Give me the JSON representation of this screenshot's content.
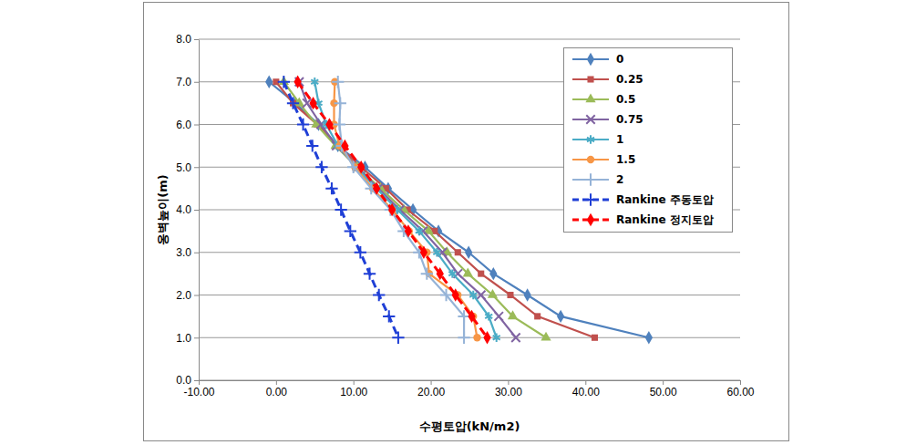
{
  "chart_data": {
    "type": "line",
    "x_label": "수평토압(kN/m2)",
    "y_label": "옹벽높이(m)",
    "xlim": [
      -10,
      60
    ],
    "xticks": [
      {
        "value": -10,
        "label": "-10.00"
      },
      {
        "value": 0,
        "label": "0.00"
      },
      {
        "value": 10,
        "label": "10.00"
      },
      {
        "value": 20,
        "label": "20.00"
      },
      {
        "value": 30,
        "label": "30.00"
      },
      {
        "value": 40,
        "label": "40.00"
      },
      {
        "value": 50,
        "label": "50.00"
      },
      {
        "value": 60,
        "label": "60.00"
      }
    ],
    "ylim": [
      0,
      8
    ],
    "yticks": [
      {
        "value": 0,
        "label": "0.0"
      },
      {
        "value": 1,
        "label": "1.0"
      },
      {
        "value": 2,
        "label": "2.0"
      },
      {
        "value": 3,
        "label": "3.0"
      },
      {
        "value": 4,
        "label": "4.0"
      },
      {
        "value": 5,
        "label": "5.0"
      },
      {
        "value": 6,
        "label": "6.0"
      },
      {
        "value": 7,
        "label": "7.0"
      },
      {
        "value": 8,
        "label": "8.0"
      }
    ],
    "grid": true,
    "legend": "upper right",
    "series": [
      {
        "name": "0",
        "color": "#4f81bd",
        "marker": "diamond",
        "line_style": "solid",
        "x": [
          -0.9,
          2.5,
          5.5,
          8.0,
          11.5,
          14.5,
          17.7,
          21.0,
          24.9,
          28.1,
          32.5,
          36.8,
          48.2
        ],
        "values": [
          7.0,
          6.5,
          6.0,
          5.5,
          5.0,
          4.5,
          4.0,
          3.5,
          3.0,
          2.5,
          2.0,
          1.5,
          1.0
        ]
      },
      {
        "name": "0.25",
        "color": "#c0504d",
        "marker": "square",
        "line_style": "solid",
        "x": [
          0.0,
          2.2,
          5.3,
          8.0,
          11.0,
          14.2,
          17.0,
          20.5,
          23.5,
          26.5,
          30.3,
          33.8,
          41.2
        ],
        "values": [
          7.0,
          6.5,
          6.0,
          5.5,
          5.0,
          4.5,
          4.0,
          3.5,
          3.0,
          2.5,
          2.0,
          1.5,
          1.0
        ]
      },
      {
        "name": "0.5",
        "color": "#9bbb59",
        "marker": "triangle",
        "line_style": "solid",
        "x": [
          1.0,
          3.0,
          5.2,
          7.7,
          10.5,
          13.5,
          16.5,
          19.7,
          22.1,
          24.8,
          28.0,
          30.6,
          34.9
        ],
        "values": [
          7.0,
          6.5,
          6.0,
          5.5,
          5.0,
          4.5,
          4.0,
          3.5,
          3.0,
          2.5,
          2.0,
          1.5,
          1.0
        ]
      },
      {
        "name": "0.75",
        "color": "#8064a2",
        "marker": "x",
        "line_style": "solid",
        "x": [
          3.0,
          4.0,
          5.8,
          7.8,
          10.5,
          13.2,
          16.0,
          19.0,
          21.5,
          23.5,
          26.5,
          28.8,
          31.0
        ],
        "values": [
          7.0,
          6.5,
          6.0,
          5.5,
          5.0,
          4.5,
          4.0,
          3.5,
          3.0,
          2.5,
          2.0,
          1.5,
          1.0
        ]
      },
      {
        "name": "1",
        "color": "#4bacc6",
        "marker": "star",
        "line_style": "solid",
        "x": [
          5.0,
          5.5,
          6.5,
          8.0,
          10.3,
          13.0,
          15.7,
          18.5,
          20.8,
          22.8,
          25.5,
          27.5,
          28.5
        ],
        "values": [
          7.0,
          6.5,
          6.0,
          5.5,
          5.0,
          4.5,
          4.0,
          3.5,
          3.0,
          2.5,
          2.0,
          1.5,
          1.0
        ]
      },
      {
        "name": "1.5",
        "color": "#f79646",
        "marker": "circle",
        "line_style": "solid",
        "x": [
          7.6,
          7.5,
          7.5,
          8.2,
          10.2,
          12.5,
          15.0,
          17.2,
          19.5,
          19.8,
          23.5,
          25.5,
          26.0
        ],
        "values": [
          7.0,
          6.5,
          6.0,
          5.5,
          5.0,
          4.5,
          4.0,
          3.5,
          3.0,
          2.5,
          2.0,
          1.5,
          1.0
        ]
      },
      {
        "name": "2",
        "color": "#95b3d7",
        "marker": "plus",
        "line_style": "solid",
        "x": [
          8.0,
          8.3,
          8.2,
          8.5,
          10.0,
          12.3,
          14.8,
          16.5,
          18.5,
          19.5,
          22.0,
          24.3,
          24.3
        ],
        "values": [
          7.0,
          6.5,
          6.0,
          5.5,
          5.0,
          4.5,
          4.0,
          3.5,
          3.0,
          2.5,
          2.0,
          1.5,
          1.0
        ]
      },
      {
        "name": "Rankine 주동토압",
        "color": "#1f3fd6",
        "marker": "plus",
        "line_style": "dashed",
        "x": [
          1.0,
          2.2,
          3.5,
          4.7,
          5.9,
          7.2,
          8.4,
          9.6,
          10.9,
          12.1,
          13.3,
          14.6,
          15.8
        ],
        "values": [
          7.0,
          6.5,
          6.0,
          5.5,
          5.0,
          4.5,
          4.0,
          3.5,
          3.0,
          2.5,
          2.0,
          1.5,
          1.0
        ]
      },
      {
        "name": "Rankine 정지토압",
        "color": "#ff0000",
        "marker": "diamond",
        "line_style": "dashed",
        "x": [
          2.8,
          4.8,
          6.9,
          8.9,
          11.0,
          13.0,
          15.0,
          17.1,
          19.1,
          21.2,
          23.2,
          25.3,
          27.3
        ],
        "values": [
          7.0,
          6.5,
          6.0,
          5.5,
          5.0,
          4.5,
          4.0,
          3.5,
          3.0,
          2.5,
          2.0,
          1.5,
          1.0
        ]
      }
    ]
  }
}
